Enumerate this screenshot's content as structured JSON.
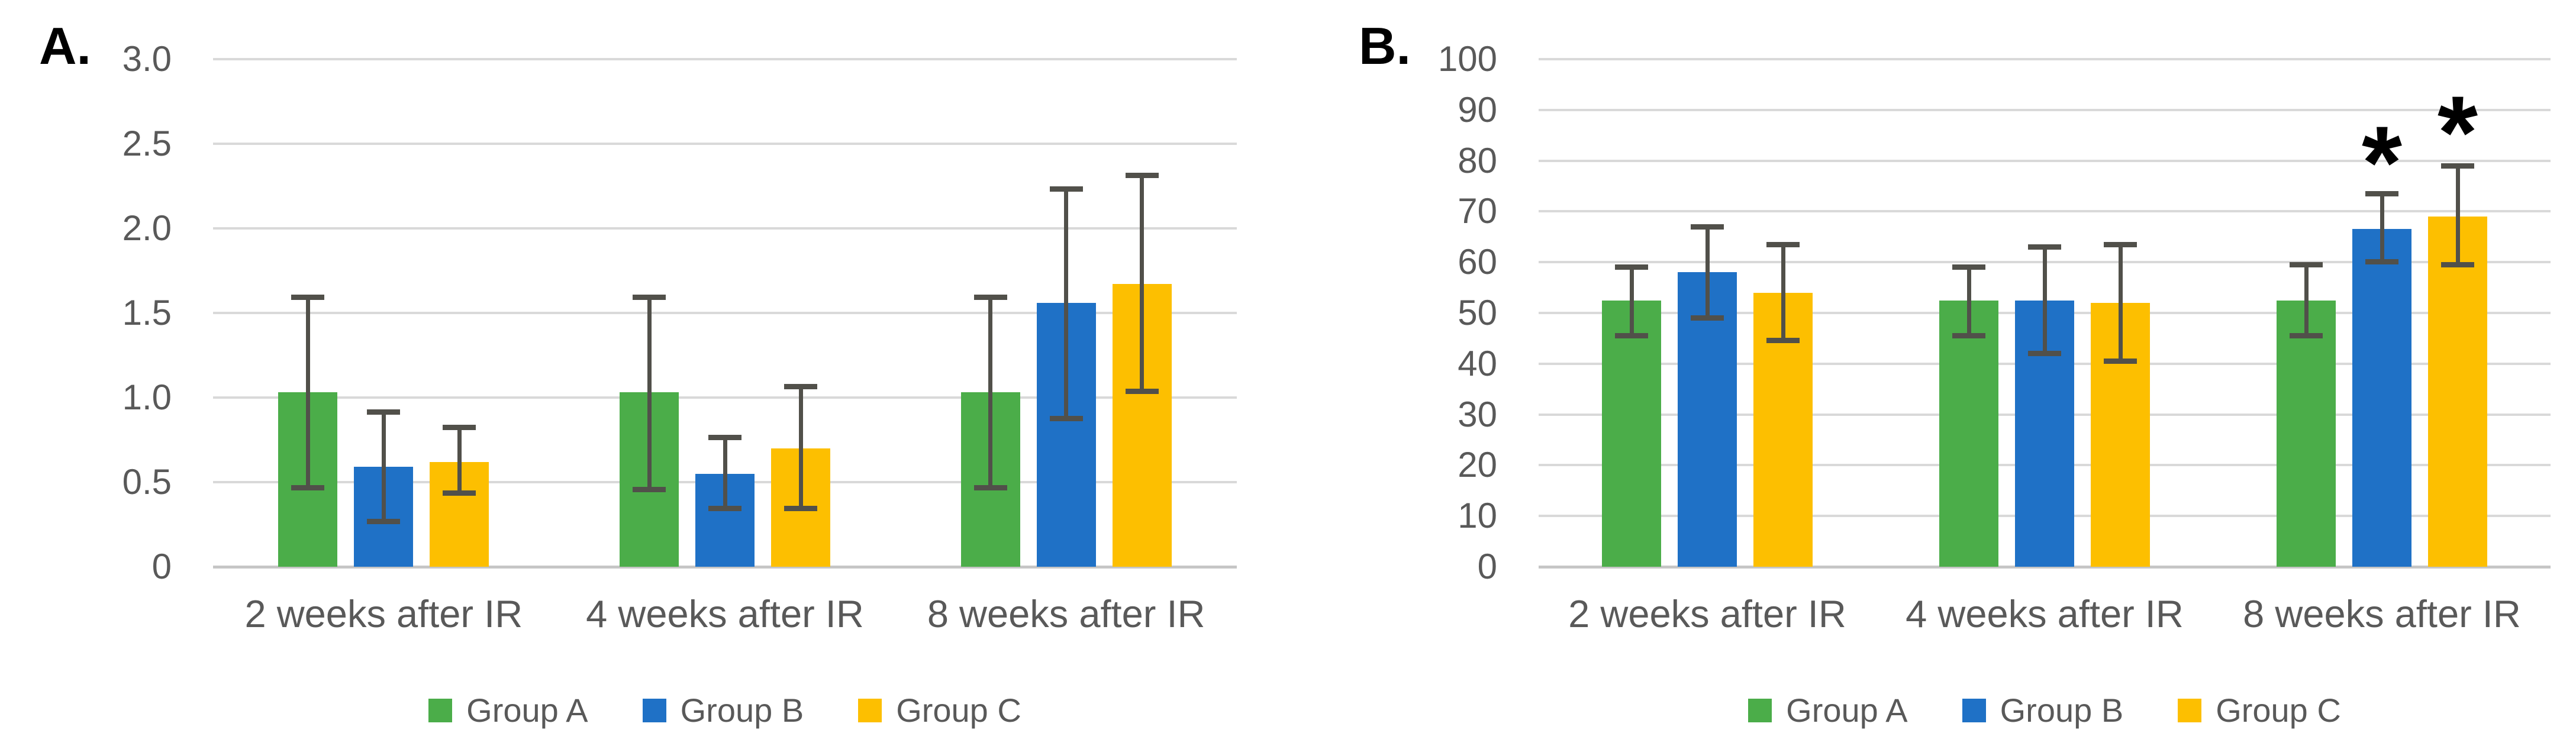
{
  "figure": {
    "background": "#ffffff",
    "styles": {
      "grid_color": "#d9d9d9",
      "axis_line_color": "#c6c6c6",
      "error_bar_color": "#51504a",
      "tick_text_color": "#595959",
      "panel_label_color": "#000000"
    }
  },
  "chart_data": [
    {
      "type": "bar",
      "panel_label": "A.",
      "title": "",
      "xlabel": "",
      "ylabel": "",
      "categories": [
        "2 weeks after IR",
        "4 weeks after IR",
        "8 weeks after IR"
      ],
      "ylim": [
        0,
        3.0
      ],
      "ytick_step": 0.5,
      "ytick_labels": [
        "0",
        "0.5",
        "1.0",
        "1.5",
        "2.0",
        "2.5",
        "3.0"
      ],
      "grid": true,
      "legend_position": "bottom",
      "series": [
        {
          "name": "Group A",
          "color": "#4bad49",
          "values": [
            1.03,
            1.03,
            1.03
          ],
          "err_minus": [
            0.58,
            0.59,
            0.58
          ],
          "err_plus": [
            0.58,
            0.58,
            0.58
          ]
        },
        {
          "name": "Group B",
          "color": "#1f71c6",
          "values": [
            0.59,
            0.55,
            1.56
          ],
          "err_minus": [
            0.34,
            0.22,
            0.7
          ],
          "err_plus": [
            0.34,
            0.23,
            0.69
          ]
        },
        {
          "name": "Group C",
          "color": "#fdbf00",
          "values": [
            0.62,
            0.7,
            1.67
          ],
          "err_minus": [
            0.2,
            0.37,
            0.65
          ],
          "err_plus": [
            0.22,
            0.38,
            0.66
          ]
        }
      ],
      "annotations": []
    },
    {
      "type": "bar",
      "panel_label": "B.",
      "title": "",
      "xlabel": "",
      "ylabel": "",
      "categories": [
        "2 weeks after IR",
        "4 weeks after IR",
        "8 weeks after IR"
      ],
      "ylim": [
        0,
        100
      ],
      "ytick_step": 10,
      "ytick_labels": [
        "0",
        "10",
        "20",
        "30",
        "40",
        "50",
        "60",
        "70",
        "80",
        "90",
        "100"
      ],
      "grid": true,
      "legend_position": "bottom",
      "series": [
        {
          "name": "Group A",
          "color": "#4bad49",
          "values": [
            52.5,
            52.5,
            52.5
          ],
          "err_minus": [
            7.5,
            7.5,
            7.5
          ],
          "err_plus": [
            7.0,
            7.0,
            7.5
          ]
        },
        {
          "name": "Group B",
          "color": "#1f71c6",
          "values": [
            58,
            52.5,
            66.5
          ],
          "err_minus": [
            9.5,
            11.0,
            7.0
          ],
          "err_plus": [
            9.5,
            11.0,
            7.5
          ]
        },
        {
          "name": "Group C",
          "color": "#fdbf00",
          "values": [
            54,
            52,
            69
          ],
          "err_minus": [
            10.0,
            12.0,
            10.0
          ],
          "err_plus": [
            10.0,
            12.0,
            10.5
          ]
        }
      ],
      "annotations": [
        {
          "category_index": 2,
          "series_index": 1,
          "text": "*",
          "y_value": 82
        },
        {
          "category_index": 2,
          "series_index": 2,
          "text": "*",
          "y_value": 88
        }
      ]
    }
  ]
}
